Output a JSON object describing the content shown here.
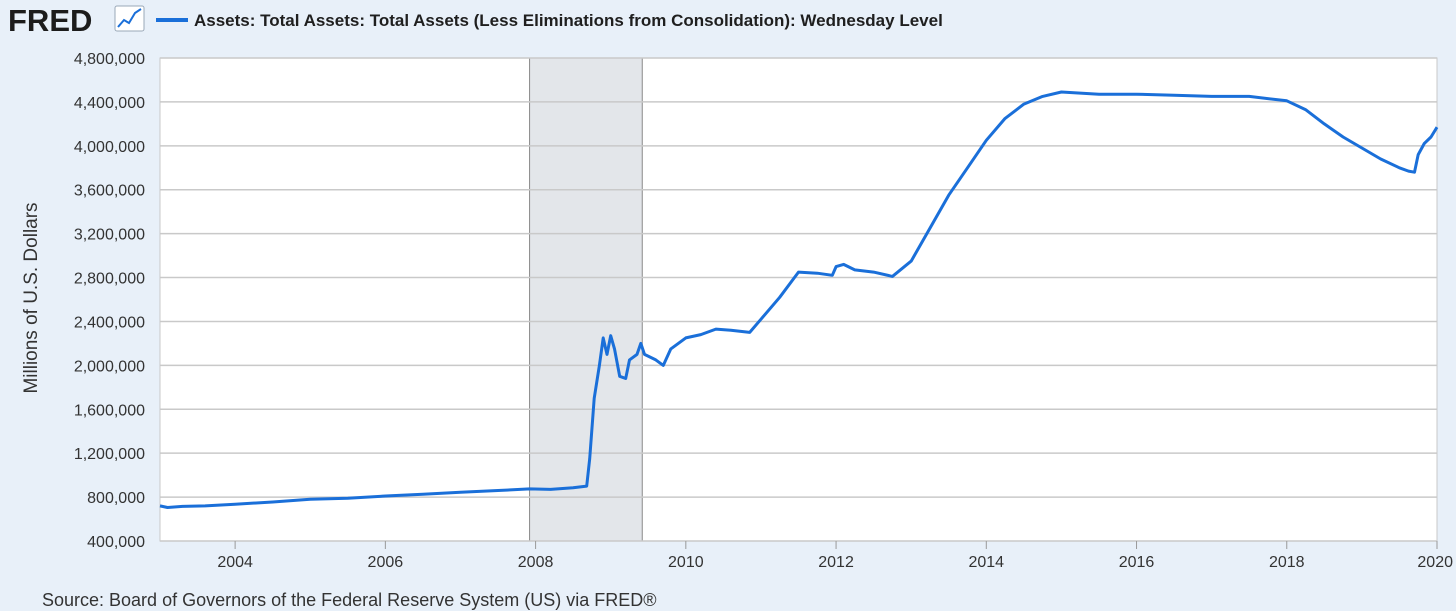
{
  "logo": {
    "text": "FRED",
    "icon": "line-chart-icon"
  },
  "source": "Source: Board of Governors of the Federal Reserve System (US) via FRED®",
  "colors": {
    "series": "#1a6fd9",
    "recession": "#e3e6ea",
    "background": "#e8f0f9",
    "plot_background": "#ffffff",
    "grid": "#c9c9c9"
  },
  "chart_data": {
    "type": "line",
    "title": "",
    "xlabel": "",
    "ylabel": "Millions of U.S. Dollars",
    "xlim": [
      2003.0,
      2020.0
    ],
    "ylim": [
      400000,
      4800000
    ],
    "x_ticks": [
      2004,
      2006,
      2008,
      2010,
      2012,
      2014,
      2016,
      2018,
      2020
    ],
    "x_tick_labels": [
      "2004",
      "2006",
      "2008",
      "2010",
      "2012",
      "2014",
      "2016",
      "2018",
      "2020"
    ],
    "y_ticks": [
      400000,
      800000,
      1200000,
      1600000,
      2000000,
      2400000,
      2800000,
      3200000,
      3600000,
      4000000,
      4400000,
      4800000
    ],
    "y_tick_labels": [
      "400,000",
      "800,000",
      "1,200,000",
      "1,600,000",
      "2,000,000",
      "2,400,000",
      "2,800,000",
      "3,200,000",
      "3,600,000",
      "4,000,000",
      "4,400,000",
      "4,800,000"
    ],
    "grid": true,
    "legend_position": "top-left",
    "shaded_periods": [
      {
        "start": 2007.92,
        "end": 2009.42
      }
    ],
    "series": [
      {
        "name": "Assets: Total Assets: Total Assets (Less Eliminations from Consolidation): Wednesday Level",
        "points": [
          [
            2003.0,
            720000
          ],
          [
            2003.1,
            705000
          ],
          [
            2003.3,
            715000
          ],
          [
            2003.6,
            720000
          ],
          [
            2004.0,
            735000
          ],
          [
            2004.5,
            755000
          ],
          [
            2005.0,
            780000
          ],
          [
            2005.5,
            790000
          ],
          [
            2006.0,
            810000
          ],
          [
            2006.5,
            825000
          ],
          [
            2007.0,
            845000
          ],
          [
            2007.5,
            860000
          ],
          [
            2007.92,
            875000
          ],
          [
            2008.2,
            870000
          ],
          [
            2008.5,
            885000
          ],
          [
            2008.68,
            900000
          ],
          [
            2008.72,
            1150000
          ],
          [
            2008.78,
            1700000
          ],
          [
            2008.85,
            2000000
          ],
          [
            2008.9,
            2250000
          ],
          [
            2008.95,
            2100000
          ],
          [
            2009.0,
            2270000
          ],
          [
            2009.05,
            2150000
          ],
          [
            2009.12,
            1900000
          ],
          [
            2009.2,
            1880000
          ],
          [
            2009.25,
            2050000
          ],
          [
            2009.35,
            2100000
          ],
          [
            2009.4,
            2200000
          ],
          [
            2009.45,
            2100000
          ],
          [
            2009.6,
            2050000
          ],
          [
            2009.7,
            2000000
          ],
          [
            2009.8,
            2150000
          ],
          [
            2010.0,
            2250000
          ],
          [
            2010.2,
            2280000
          ],
          [
            2010.4,
            2330000
          ],
          [
            2010.6,
            2320000
          ],
          [
            2010.85,
            2300000
          ],
          [
            2011.0,
            2420000
          ],
          [
            2011.25,
            2620000
          ],
          [
            2011.5,
            2850000
          ],
          [
            2011.75,
            2840000
          ],
          [
            2011.95,
            2820000
          ],
          [
            2012.0,
            2900000
          ],
          [
            2012.1,
            2920000
          ],
          [
            2012.25,
            2870000
          ],
          [
            2012.5,
            2850000
          ],
          [
            2012.75,
            2810000
          ],
          [
            2013.0,
            2950000
          ],
          [
            2013.25,
            3250000
          ],
          [
            2013.5,
            3550000
          ],
          [
            2013.75,
            3800000
          ],
          [
            2014.0,
            4050000
          ],
          [
            2014.25,
            4250000
          ],
          [
            2014.5,
            4380000
          ],
          [
            2014.75,
            4450000
          ],
          [
            2015.0,
            4490000
          ],
          [
            2015.5,
            4470000
          ],
          [
            2016.0,
            4470000
          ],
          [
            2016.5,
            4460000
          ],
          [
            2017.0,
            4450000
          ],
          [
            2017.5,
            4450000
          ],
          [
            2018.0,
            4410000
          ],
          [
            2018.25,
            4330000
          ],
          [
            2018.5,
            4200000
          ],
          [
            2018.75,
            4080000
          ],
          [
            2019.0,
            3980000
          ],
          [
            2019.25,
            3880000
          ],
          [
            2019.5,
            3800000
          ],
          [
            2019.62,
            3770000
          ],
          [
            2019.7,
            3760000
          ],
          [
            2019.75,
            3920000
          ],
          [
            2019.83,
            4020000
          ],
          [
            2019.92,
            4080000
          ],
          [
            2020.0,
            4170000
          ]
        ]
      }
    ]
  }
}
